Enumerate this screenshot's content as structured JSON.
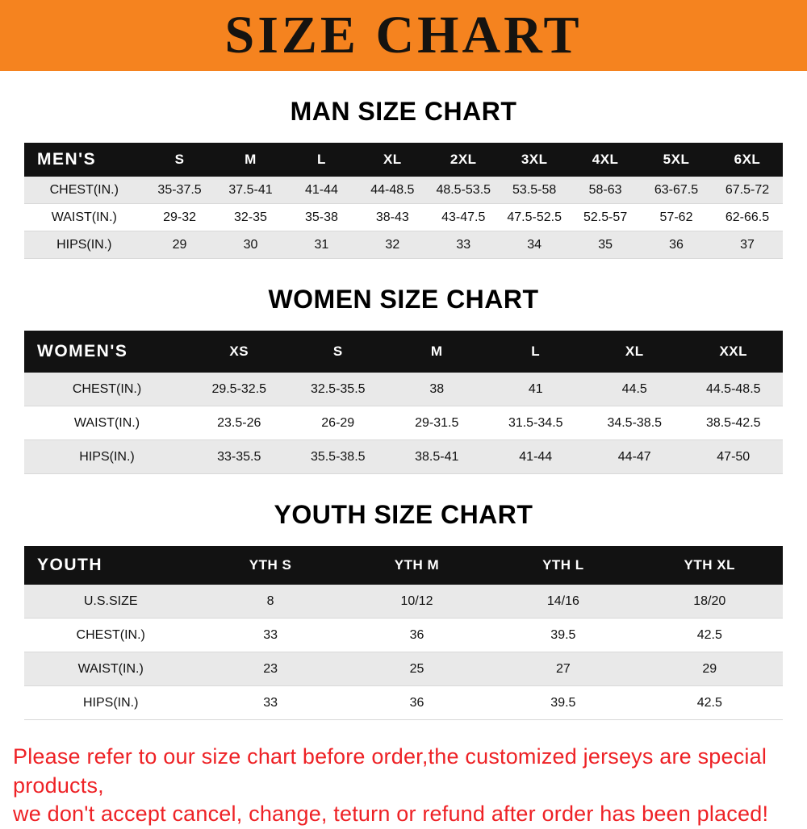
{
  "banner": {
    "title": "SIZE CHART"
  },
  "colors": {
    "banner_bg": "#f5831f",
    "table_header_bg": "#121212",
    "row_shade": "#e9e9e9",
    "footer_text": "#ee2226"
  },
  "footer": {
    "line1": "Please refer to our size chart before order,the customized jerseys are special products,",
    "line2": "we don't accept cancel, change, teturn or refund after order has been placed!"
  },
  "chart_data": [
    {
      "type": "table",
      "title": "MAN SIZE CHART",
      "header": [
        "MEN'S",
        "S",
        "M",
        "L",
        "XL",
        "2XL",
        "3XL",
        "4XL",
        "5XL",
        "6XL"
      ],
      "rows": [
        [
          "CHEST(IN.)",
          "35-37.5",
          "37.5-41",
          "41-44",
          "44-48.5",
          "48.5-53.5",
          "53.5-58",
          "58-63",
          "63-67.5",
          "67.5-72"
        ],
        [
          "WAIST(IN.)",
          "29-32",
          "32-35",
          "35-38",
          "38-43",
          "43-47.5",
          "47.5-52.5",
          "52.5-57",
          "57-62",
          "62-66.5"
        ],
        [
          "HIPS(IN.)",
          "29",
          "30",
          "31",
          "32",
          "33",
          "34",
          "35",
          "36",
          "37"
        ]
      ]
    },
    {
      "type": "table",
      "title": "WOMEN SIZE CHART",
      "header": [
        "WOMEN'S",
        "XS",
        "S",
        "M",
        "L",
        "XL",
        "XXL"
      ],
      "rows": [
        [
          "CHEST(IN.)",
          "29.5-32.5",
          "32.5-35.5",
          "38",
          "41",
          "44.5",
          "44.5-48.5"
        ],
        [
          "WAIST(IN.)",
          "23.5-26",
          "26-29",
          "29-31.5",
          "31.5-34.5",
          "34.5-38.5",
          "38.5-42.5"
        ],
        [
          "HIPS(IN.)",
          "33-35.5",
          "35.5-38.5",
          "38.5-41",
          "41-44",
          "44-47",
          "47-50"
        ]
      ]
    },
    {
      "type": "table",
      "title": "YOUTH SIZE CHART",
      "header": [
        "YOUTH",
        "YTH S",
        "YTH M",
        "YTH L",
        "YTH XL"
      ],
      "rows": [
        [
          "U.S.SIZE",
          "8",
          "10/12",
          "14/16",
          "18/20"
        ],
        [
          "CHEST(IN.)",
          "33",
          "36",
          "39.5",
          "42.5"
        ],
        [
          "WAIST(IN.)",
          "23",
          "25",
          "27",
          "29"
        ],
        [
          "HIPS(IN.)",
          "33",
          "36",
          "39.5",
          "42.5"
        ]
      ]
    }
  ]
}
